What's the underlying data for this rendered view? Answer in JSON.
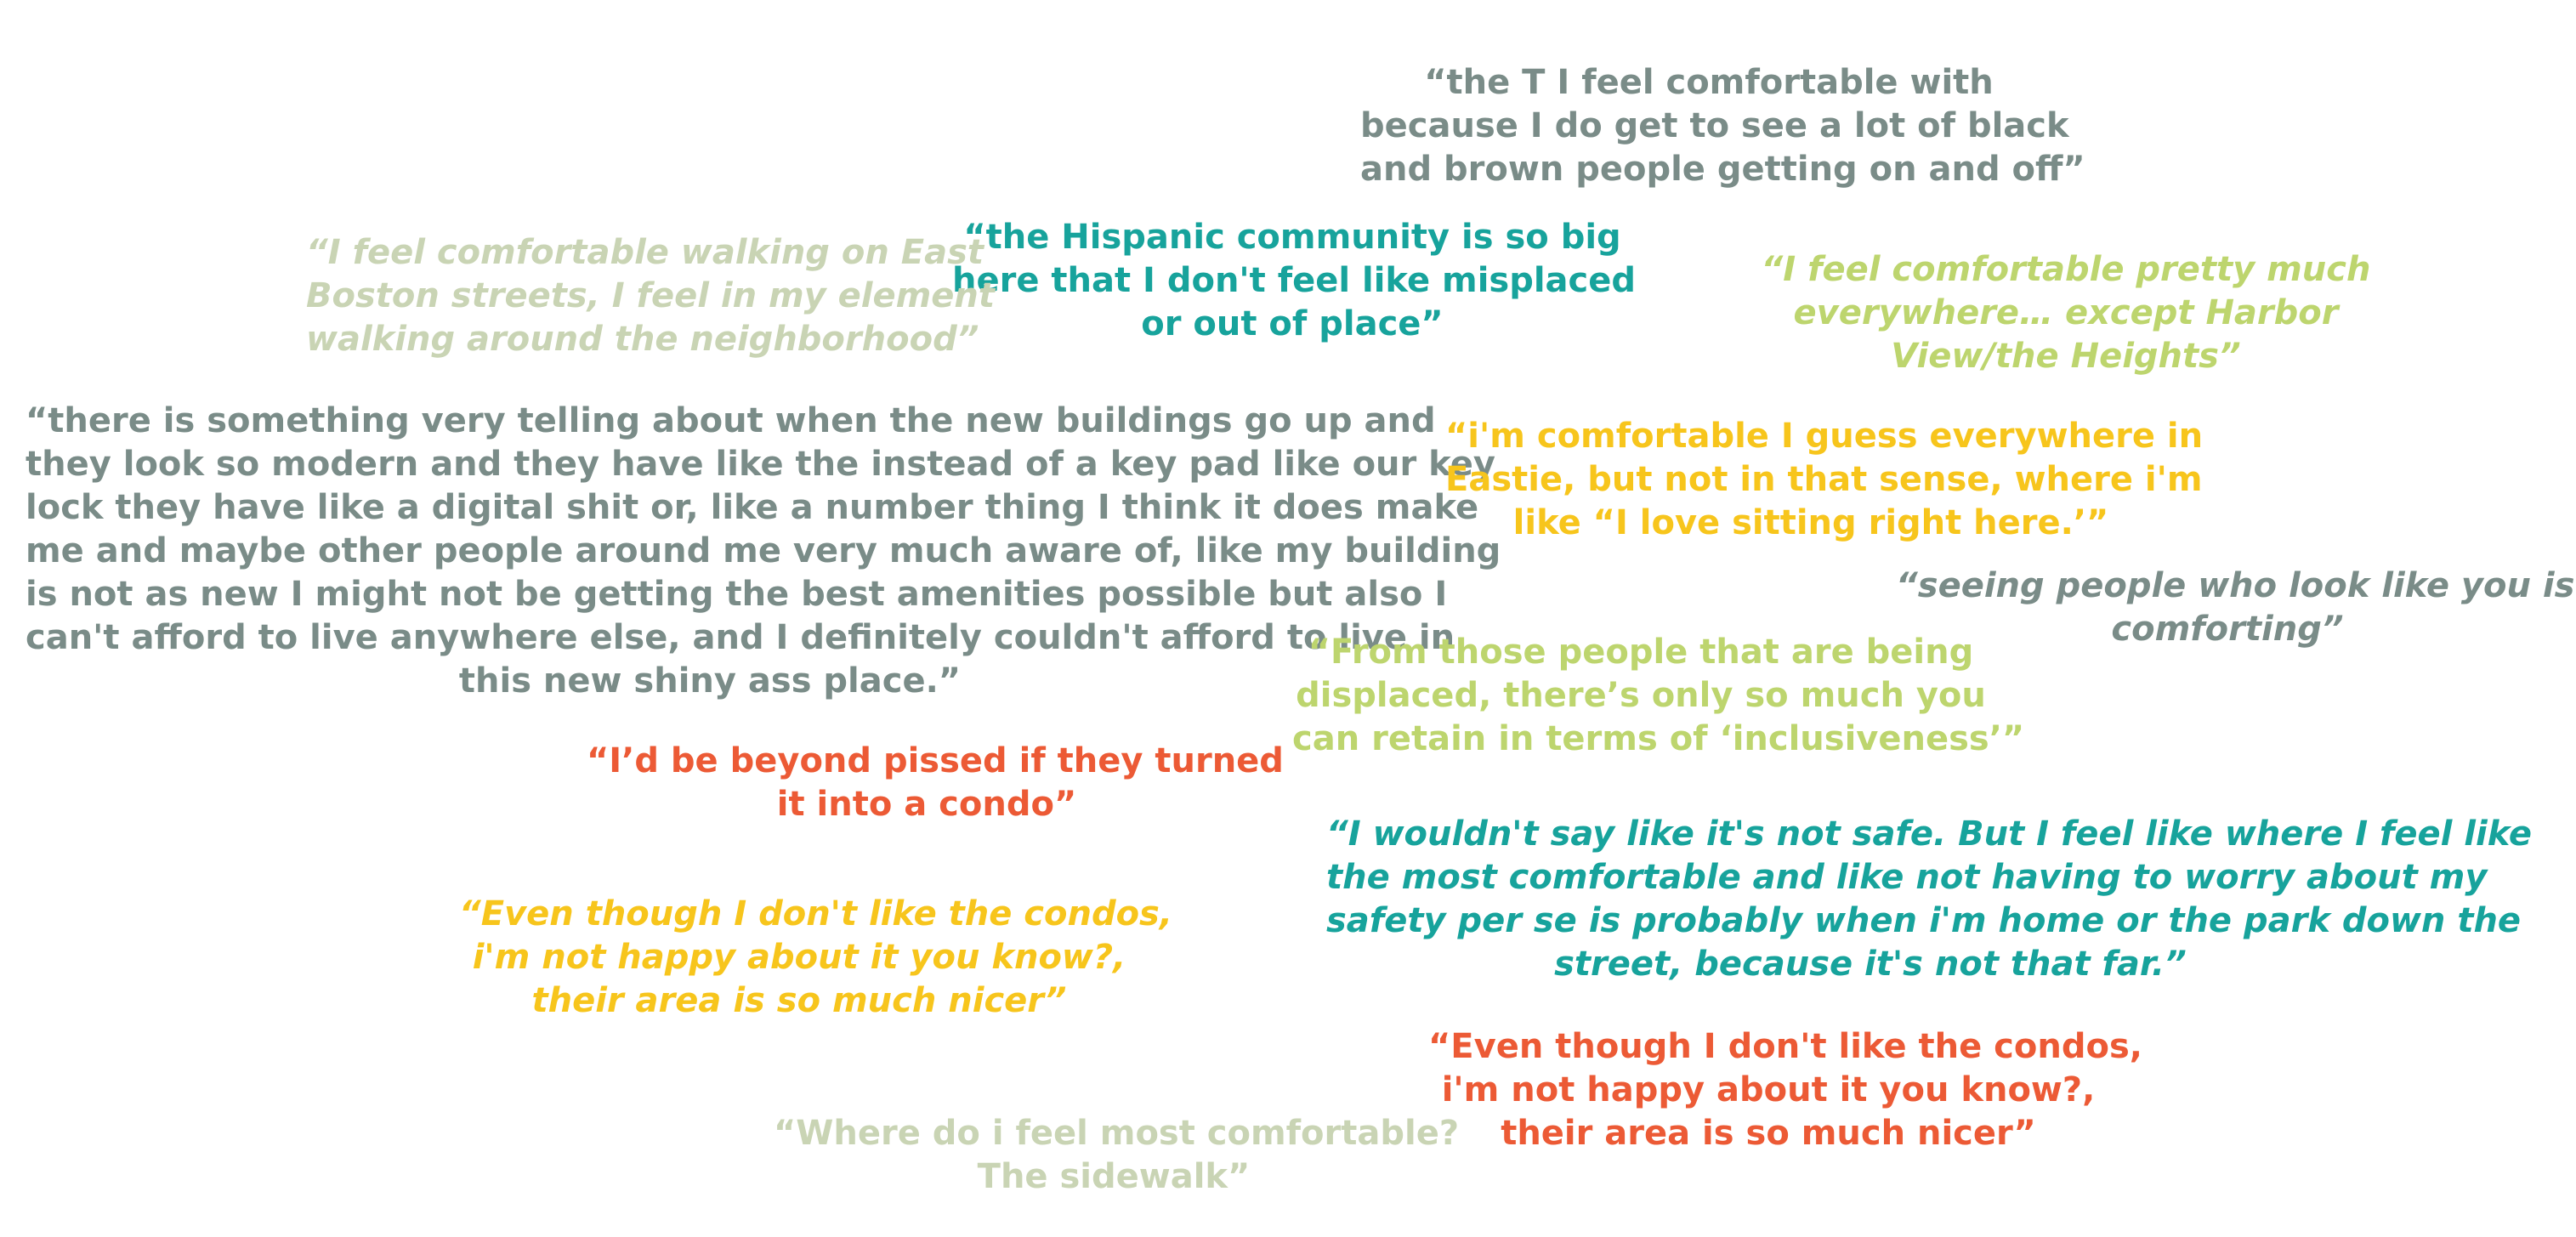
{
  "quotes": [
    {
      "id": "the-t",
      "style": "normal",
      "color": "#7a8c88",
      "lines": [
        "“the T I feel comfortable with",
        "because I do get to see a lot of black",
        "and brown people getting on and off”"
      ]
    },
    {
      "id": "hispanic-community",
      "style": "normal",
      "color": "#17a39c",
      "lines": [
        "“the Hispanic community is so big",
        "here that I don't feel like misplaced",
        "or out of place”"
      ]
    },
    {
      "id": "east-boston-streets",
      "style": "italic",
      "color": "#c9d4b4",
      "lines": [
        "“I feel comfortable walking on East",
        "Boston streets, I feel in my element",
        "walking around the neighborhood”"
      ]
    },
    {
      "id": "pretty-much-everywhere",
      "style": "italic",
      "color": "#bdd56e",
      "lines": [
        "“I feel comfortable pretty much",
        "everywhere… except Harbor",
        "View/the Heights”"
      ]
    },
    {
      "id": "new-buildings",
      "style": "normal",
      "color": "#7a8c88",
      "lines": [
        "“there is something very telling about when the new buildings go up and",
        "they look so modern and they have like the instead of a key pad like our key",
        "lock they have like a digital shit or, like a number thing I think it does make",
        "me and maybe other people around me very much aware of, like my building",
        "is not as new I might not be getting the best amenities possible but also I",
        "can't afford to live anywhere else, and I definitely couldn't afford to live in",
        "this new shiny ass place.”"
      ]
    },
    {
      "id": "everywhere-in-eastie",
      "style": "normal",
      "color": "#f7c51c",
      "lines": [
        "“i'm comfortable I guess everywhere in",
        "Eastie, but not in that sense, where i'm",
        "like “I love sitting right here.’”"
      ]
    },
    {
      "id": "look-like-you",
      "style": "italic",
      "color": "#7a8c88",
      "lines": [
        "“seeing people who look like you is",
        "comforting”"
      ]
    },
    {
      "id": "displaced",
      "style": "normal",
      "color": "#bdd56e",
      "lines": [
        "“From those people that are being",
        "displaced, there’s only so much you",
        "can retain in terms of ‘inclusiveness’”"
      ]
    },
    {
      "id": "pissed-condo",
      "style": "normal",
      "color": "#ec5a35",
      "lines": [
        "“I’d be beyond pissed if they turned",
        "it into a condo”"
      ]
    },
    {
      "id": "not-safe",
      "style": "italic",
      "color": "#17a39c",
      "lines": [
        "“I wouldn't say like it's not safe. But I feel like where I feel like",
        "the most comfortable and like not having to worry about my",
        "safety per se is probably when i'm home or the park down the",
        "street, because it's not that far.”"
      ]
    },
    {
      "id": "condos-yellow",
      "style": "italic",
      "color": "#f7c51c",
      "lines": [
        "“Even though I don't like the condos,",
        "i'm not happy about it you know?,",
        "their area is so much nicer”"
      ]
    },
    {
      "id": "condos-orange",
      "style": "normal",
      "color": "#ec5a35",
      "lines": [
        "“Even though I don't like the condos,",
        "i'm not happy about it you know?,",
        "their area is so much nicer”"
      ]
    },
    {
      "id": "sidewalk",
      "style": "normal",
      "color": "#c9d4b4",
      "lines": [
        "“Where do i feel most comfortable?",
        "The sidewalk”"
      ]
    }
  ]
}
